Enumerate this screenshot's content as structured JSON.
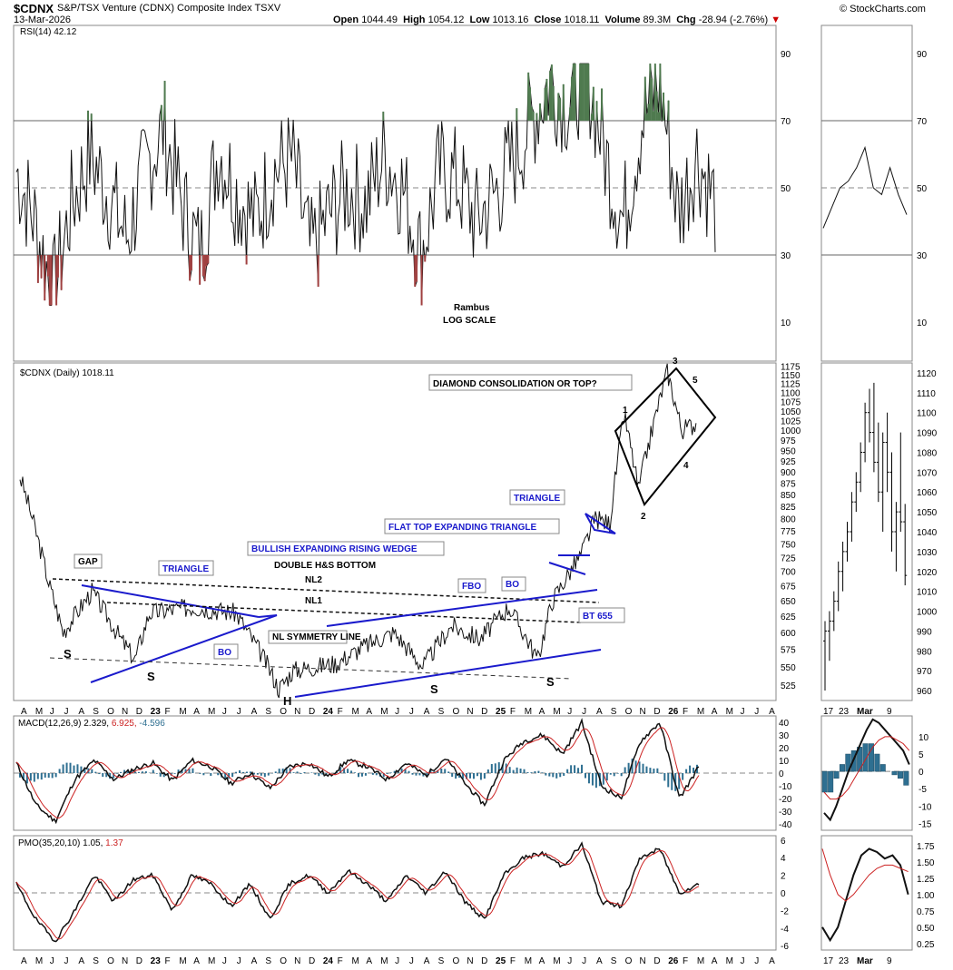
{
  "header": {
    "symbol": "$CDNX",
    "name": "S&P/TSX Venture (CDNX) Composite Index",
    "exchange": "TSXV",
    "date": "13-Mar-2026",
    "open_label": "Open",
    "open": "1044.49",
    "high_label": "High",
    "high": "1054.12",
    "low_label": "Low",
    "low": "1013.16",
    "close_label": "Close",
    "close": "1018.11",
    "volume_label": "Volume",
    "volume": "89.3M",
    "chg_label": "Chg",
    "chg": "-28.94 (-2.76%)",
    "chg_arrow": "▼",
    "credit": "© StockCharts.com"
  },
  "colors": {
    "trendline": "#1a1acc",
    "rsi_overbought_fill": "#4f7a4f",
    "rsi_oversold_fill": "#a04040",
    "macd_hist": "#2e6f91",
    "signal": "#cc2222",
    "grid": "#999999"
  },
  "chart_data": [
    {
      "type": "line",
      "panel": "rsi",
      "legend": "RSI(14) 42.12",
      "ylim": [
        0,
        100
      ],
      "y_ticks": [
        "90",
        "70",
        "50",
        "30",
        "10"
      ],
      "reference_lines": [
        70,
        50,
        30
      ],
      "series": [
        {
          "name": "RSI(14)",
          "last": 42.12,
          "approx_range": [
            15,
            87
          ]
        }
      ],
      "annotations": [
        "Rambus",
        "LOG SCALE"
      ]
    },
    {
      "type": "line",
      "panel": "price",
      "legend": "$CDNX (Daily) 1018.11",
      "log_scale": true,
      "y_ticks": [
        "1175",
        "1150",
        "1125",
        "1100",
        "1075",
        "1050",
        "1025",
        "1000",
        "975",
        "950",
        "925",
        "900",
        "875",
        "850",
        "825",
        "800",
        "775",
        "750",
        "725",
        "700",
        "675",
        "650",
        "625",
        "600",
        "575",
        "550",
        "525"
      ],
      "x_ticks": [
        "A",
        "M",
        "J",
        "J",
        "A",
        "S",
        "O",
        "N",
        "D",
        "23",
        "F",
        "M",
        "A",
        "M",
        "J",
        "J",
        "A",
        "S",
        "O",
        "N",
        "D",
        "24",
        "F",
        "M",
        "A",
        "M",
        "J",
        "J",
        "A",
        "S",
        "O",
        "N",
        "D",
        "25",
        "F",
        "M",
        "A",
        "M",
        "J",
        "J",
        "A",
        "S",
        "O",
        "N",
        "D",
        "26",
        "F",
        "M",
        "A",
        "M",
        "J",
        "J",
        "A"
      ],
      "key_points": [
        {
          "x": "2022-04",
          "y": 890
        },
        {
          "x": "2022-06",
          "y": 680
        },
        {
          "x": "2022-07",
          "y": 600
        },
        {
          "x": "2022-09",
          "y": 665
        },
        {
          "x": "2022-11",
          "y": 590
        },
        {
          "x": "2022-12",
          "y": 560
        },
        {
          "x": "2023-01",
          "y": 630
        },
        {
          "x": "2023-04",
          "y": 640
        },
        {
          "x": "2023-07",
          "y": 630
        },
        {
          "x": "2023-09",
          "y": 560
        },
        {
          "x": "2023-10",
          "y": 520
        },
        {
          "x": "2023-11",
          "y": 545
        },
        {
          "x": "2024-02",
          "y": 555
        },
        {
          "x": "2024-04",
          "y": 580
        },
        {
          "x": "2024-06",
          "y": 600
        },
        {
          "x": "2024-08",
          "y": 550
        },
        {
          "x": "2024-10",
          "y": 610
        },
        {
          "x": "2024-12",
          "y": 590
        },
        {
          "x": "2025-02",
          "y": 640
        },
        {
          "x": "2025-04",
          "y": 560
        },
        {
          "x": "2025-05",
          "y": 650
        },
        {
          "x": "2025-07",
          "y": 730
        },
        {
          "x": "2025-08",
          "y": 800
        },
        {
          "x": "2025-09",
          "y": 790
        },
        {
          "x": "2025-10",
          "y": 1040
        },
        {
          "x": "2025-11",
          "y": 860
        },
        {
          "x": "2026-01",
          "y": 1160
        },
        {
          "x": "2026-02",
          "y": 1000
        },
        {
          "x": "2026-03",
          "y": 1018
        }
      ],
      "annotations": [
        "GAP",
        "TRIANGLE",
        "BO",
        "S",
        "S",
        "H",
        "S",
        "S",
        "NL SYMMETRY LINE",
        "BULLISH EXPANDING RISING WEDGE",
        "DOUBLE H&S BOTTOM",
        "NL2",
        "NL1",
        "FBO",
        "BO",
        "BT 655",
        "FLAT TOP EXPANDING TRIANGLE",
        "TRIANGLE",
        "DIAMOND CONSOLIDATION OR TOP?",
        "1",
        "2",
        "3",
        "4",
        "5"
      ]
    },
    {
      "type": "line",
      "panel": "macd",
      "legend_label": "MACD(12,26,9)",
      "legend_values": [
        "2.329",
        "6.925",
        "-4.596"
      ],
      "y_ticks": [
        "40",
        "30",
        "20",
        "10",
        "0",
        "-10",
        "-20",
        "-30",
        "-40"
      ],
      "ylim": [
        -45,
        45
      ],
      "series": [
        {
          "name": "MACD",
          "last": 2.329
        },
        {
          "name": "Signal",
          "last": 6.925
        },
        {
          "name": "Histogram",
          "last": -4.596
        }
      ]
    },
    {
      "type": "line",
      "panel": "pmo",
      "legend_label": "PMO(35,20,10)",
      "legend_values": [
        "1.05",
        "1.37"
      ],
      "y_ticks": [
        "6",
        "4",
        "2",
        "0",
        "-2",
        "-4",
        "-6"
      ],
      "ylim": [
        -6.5,
        6.5
      ],
      "series": [
        {
          "name": "PMO",
          "last": 1.05
        },
        {
          "name": "Signal",
          "last": 1.37
        }
      ]
    },
    {
      "type": "line",
      "panel": "zoom-rsi",
      "y_ticks": [
        "90",
        "70",
        "50",
        "30",
        "10"
      ],
      "values": [
        38,
        44,
        50,
        52,
        56,
        62,
        50,
        48,
        56,
        48,
        42
      ]
    },
    {
      "type": "bar",
      "panel": "zoom-price",
      "y_ticks": [
        "1120",
        "1110",
        "1100",
        "1090",
        "1080",
        "1070",
        "1060",
        "1050",
        "1040",
        "1030",
        "1020",
        "1010",
        "1000",
        "990",
        "980",
        "970",
        "960"
      ],
      "x_ticks": [
        "17",
        "23",
        "Mar",
        "9"
      ],
      "ohlc": [
        [
          985,
          995,
          960,
          990
        ],
        [
          990,
          1000,
          975,
          995
        ],
        [
          995,
          1010,
          990,
          1005
        ],
        [
          1005,
          1025,
          1000,
          1020
        ],
        [
          1020,
          1035,
          1010,
          1030
        ],
        [
          1030,
          1045,
          1025,
          1040
        ],
        [
          1040,
          1060,
          1035,
          1055
        ],
        [
          1055,
          1070,
          1050,
          1065
        ],
        [
          1065,
          1085,
          1060,
          1080
        ],
        [
          1080,
          1105,
          1075,
          1100
        ],
        [
          1100,
          1112,
          1085,
          1090
        ],
        [
          1090,
          1115,
          1070,
          1075
        ],
        [
          1075,
          1095,
          1055,
          1060
        ],
        [
          1060,
          1090,
          1040,
          1085
        ],
        [
          1085,
          1100,
          1060,
          1070
        ],
        [
          1070,
          1080,
          1030,
          1040
        ],
        [
          1040,
          1055,
          1020,
          1050
        ],
        [
          1050,
          1090,
          1040,
          1045
        ],
        [
          1045,
          1054,
          1013,
          1018
        ]
      ]
    },
    {
      "type": "line",
      "panel": "zoom-macd",
      "y_ticks": [
        "10",
        "5",
        "0",
        "-5",
        "-10",
        "-15"
      ],
      "macd": [
        -12,
        -14,
        -10,
        -5,
        0,
        4,
        8,
        12,
        15,
        14,
        12,
        10,
        8,
        6,
        2
      ],
      "signal": [
        -6,
        -8,
        -8,
        -7,
        -5,
        -2,
        1,
        4,
        7,
        9,
        10,
        10,
        9,
        8,
        6
      ],
      "histogram": [
        -6,
        -6,
        -2,
        2,
        5,
        6,
        7,
        8,
        8,
        5,
        2,
        0,
        -1,
        -2,
        -4
      ]
    },
    {
      "type": "line",
      "panel": "zoom-pmo",
      "y_ticks": [
        "1.75",
        "1.50",
        "1.25",
        "1.00",
        "0.75",
        "0.50",
        "0.25"
      ],
      "pmo": [
        0.5,
        0.3,
        0.5,
        0.9,
        1.3,
        1.6,
        1.7,
        1.65,
        1.55,
        1.6,
        1.45,
        1.0
      ],
      "signal": [
        1.7,
        1.3,
        1.0,
        0.9,
        1.0,
        1.15,
        1.3,
        1.4,
        1.45,
        1.45,
        1.4,
        1.35
      ]
    }
  ]
}
